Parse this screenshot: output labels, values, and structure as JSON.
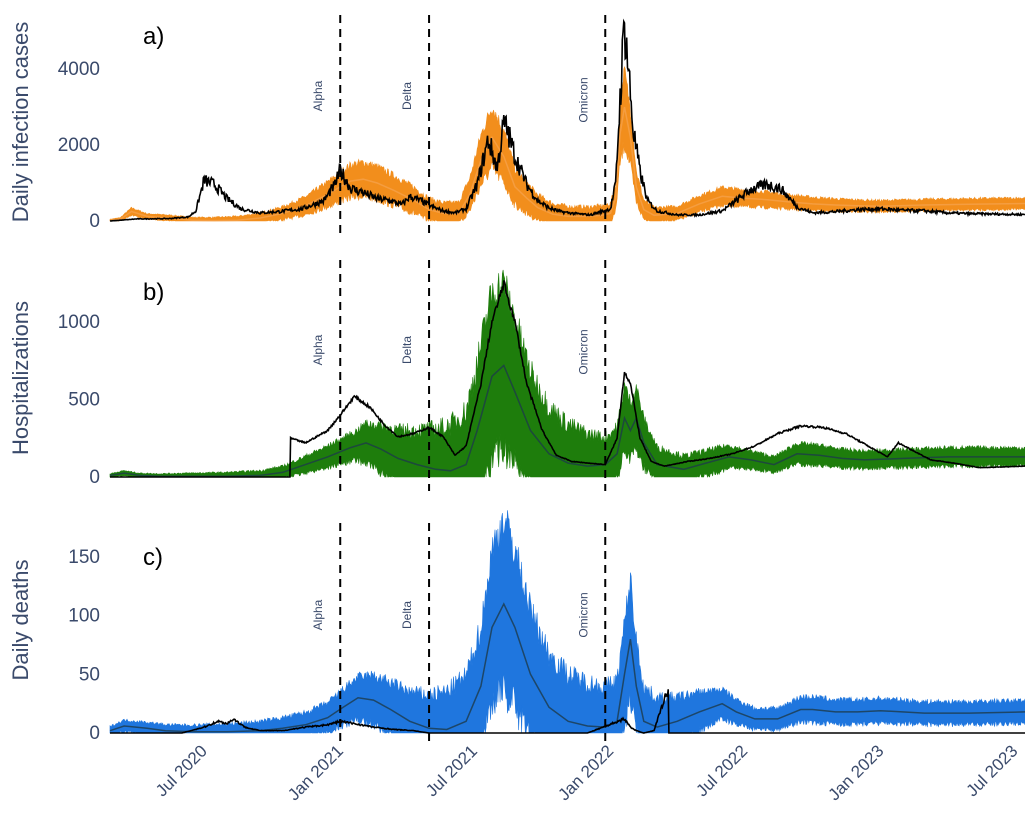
{
  "figure": {
    "x_ticks": [
      "Jul 2020",
      "Jan 2021",
      "Jul 2021",
      "Jan 2022",
      "Jul 2022",
      "Jan 2023",
      "Jul 2023"
    ],
    "variants": [
      {
        "label": "Alpha",
        "date": "2021-01-01"
      },
      {
        "label": "Delta",
        "date": "2021-05-01"
      },
      {
        "label": "Omicron",
        "date": "2021-12-25"
      }
    ],
    "colors": {
      "observed": "#000000",
      "dashed": "#000000",
      "axis_text": "#3a4a6b"
    }
  },
  "chart_data": [
    {
      "type": "line",
      "panel_label": "a)",
      "ylabel": "Daily infection cases",
      "yticks": [
        0,
        2000,
        4000
      ],
      "ylim": [
        0,
        5200
      ],
      "xlim": [
        "2020-02-25",
        "2023-07-15"
      ],
      "band_color": "#f28e1c",
      "series": [
        {
          "role": "observed",
          "x": [
            "2020-02-25",
            "2020-04-01",
            "2020-05-15",
            "2020-06-10",
            "2020-06-20",
            "2020-07-01",
            "2020-07-15",
            "2020-08-01",
            "2020-08-20",
            "2020-09-15",
            "2020-10-10",
            "2020-11-10",
            "2020-12-10",
            "2020-12-25",
            "2021-01-01",
            "2021-01-15",
            "2021-02-01",
            "2021-02-20",
            "2021-03-10",
            "2021-03-25",
            "2021-04-05",
            "2021-04-20",
            "2021-05-05",
            "2021-05-20",
            "2021-06-05",
            "2021-06-20",
            "2021-07-05",
            "2021-07-20",
            "2021-08-01",
            "2021-08-10",
            "2021-08-15",
            "2021-08-25",
            "2021-09-10",
            "2021-09-25",
            "2021-10-10",
            "2021-10-25",
            "2021-11-15",
            "2021-12-05",
            "2021-12-25",
            "2022-01-01",
            "2022-01-08",
            "2022-01-14",
            "2022-01-20",
            "2022-01-25",
            "2022-02-01",
            "2022-02-10",
            "2022-02-20",
            "2022-03-05",
            "2022-04-01",
            "2022-05-01",
            "2022-06-01",
            "2022-06-20",
            "2022-07-10",
            "2022-08-01",
            "2022-08-20",
            "2022-09-10",
            "2022-10-01",
            "2022-11-01",
            "2022-12-01",
            "2023-01-01",
            "2023-02-01",
            "2023-03-01",
            "2023-04-01",
            "2023-05-01",
            "2023-07-15"
          ],
          "y": [
            0,
            50,
            60,
            100,
            250,
            1000,
            900,
            550,
            300,
            200,
            230,
            300,
            500,
            900,
            1250,
            800,
            700,
            550,
            500,
            400,
            600,
            500,
            350,
            250,
            200,
            300,
            900,
            2000,
            1300,
            2400,
            2200,
            1600,
            900,
            500,
            320,
            230,
            180,
            150,
            260,
            300,
            900,
            3000,
            4900,
            3800,
            2200,
            1200,
            500,
            250,
            150,
            150,
            250,
            500,
            780,
            900,
            780,
            350,
            200,
            230,
            280,
            300,
            260,
            250,
            200,
            180,
            160
          ]
        },
        {
          "role": "model_mean",
          "x": [
            "2020-02-25",
            "2020-03-10",
            "2020-03-25",
            "2020-04-15",
            "2020-05-15",
            "2020-06-15",
            "2020-07-15",
            "2020-08-15",
            "2020-09-15",
            "2020-10-15",
            "2020-11-15",
            "2020-12-15",
            "2021-01-01",
            "2021-01-15",
            "2021-02-01",
            "2021-02-20",
            "2021-03-15",
            "2021-04-10",
            "2021-05-01",
            "2021-05-20",
            "2021-06-10",
            "2021-06-25",
            "2021-07-10",
            "2021-07-25",
            "2021-08-10",
            "2021-08-25",
            "2021-09-10",
            "2021-09-25",
            "2021-10-15",
            "2021-11-05",
            "2021-12-01",
            "2021-12-20",
            "2022-01-01",
            "2022-01-08",
            "2022-01-14",
            "2022-01-20",
            "2022-01-28",
            "2022-02-05",
            "2022-02-15",
            "2022-03-01",
            "2022-04-01",
            "2022-05-01",
            "2022-06-01",
            "2022-07-01",
            "2022-08-01",
            "2022-09-01",
            "2022-10-01",
            "2022-11-01",
            "2022-12-01",
            "2023-01-01",
            "2023-03-01",
            "2023-05-01",
            "2023-07-15"
          ],
          "y": [
            20,
            50,
            250,
            120,
            80,
            20,
            10,
            20,
            80,
            200,
            400,
            700,
            900,
            1050,
            1100,
            1000,
            800,
            550,
            300,
            200,
            200,
            700,
            1600,
            2200,
            1700,
            900,
            600,
            350,
            180,
            120,
            120,
            150,
            200,
            600,
            2300,
            3000,
            2200,
            900,
            300,
            150,
            200,
            450,
            650,
            600,
            560,
            500,
            450,
            420,
            400,
            390,
            420,
            440,
            460
          ]
        },
        {
          "role": "model_band_halfwidth",
          "x": [
            "2020-02-25",
            "2021-01-15",
            "2021-08-01",
            "2022-01-20",
            "2022-06-01",
            "2023-07-15"
          ],
          "y": [
            20,
            160,
            260,
            200,
            70,
            30
          ]
        }
      ]
    },
    {
      "type": "line",
      "panel_label": "b)",
      "ylabel": "Hospitalizations",
      "yticks": [
        0,
        500,
        1000
      ],
      "ylim": [
        0,
        1350
      ],
      "xlim": [
        "2020-02-25",
        "2023-07-15"
      ],
      "band_color": "#1e7d0c",
      "series": [
        {
          "role": "observed",
          "x": [
            "2020-02-25",
            "2020-10-25",
            "2020-10-26",
            "2020-11-15",
            "2020-12-15",
            "2021-01-01",
            "2021-01-20",
            "2021-02-10",
            "2021-03-01",
            "2021-03-20",
            "2021-04-10",
            "2021-05-01",
            "2021-05-20",
            "2021-06-05",
            "2021-06-20",
            "2021-07-10",
            "2021-07-25",
            "2021-08-10",
            "2021-08-25",
            "2021-09-10",
            "2021-10-01",
            "2021-10-20",
            "2021-11-10",
            "2021-12-01",
            "2021-12-25",
            "2022-01-10",
            "2022-01-20",
            "2022-01-28",
            "2022-02-10",
            "2022-02-25",
            "2022-03-15",
            "2022-04-15",
            "2022-05-15",
            "2022-06-15",
            "2022-07-15",
            "2022-08-15",
            "2022-09-15",
            "2022-10-15",
            "2022-11-15",
            "2022-12-15",
            "2023-01-10",
            "2023-01-25",
            "2023-02-10",
            "2023-03-10",
            "2023-04-10",
            "2023-05-15",
            "2023-07-15"
          ],
          "y": [
            0,
            0,
            250,
            220,
            300,
            400,
            520,
            450,
            340,
            260,
            280,
            320,
            260,
            140,
            200,
            600,
            1000,
            1250,
            1000,
            600,
            300,
            140,
            100,
            90,
            80,
            250,
            680,
            600,
            250,
            100,
            70,
            100,
            120,
            150,
            200,
            280,
            330,
            320,
            280,
            200,
            130,
            220,
            180,
            110,
            90,
            60,
            70
          ]
        },
        {
          "role": "model_mean",
          "x": [
            "2020-02-25",
            "2020-03-15",
            "2020-04-05",
            "2020-05-01",
            "2020-06-15",
            "2020-08-01",
            "2020-09-15",
            "2020-10-15",
            "2020-11-15",
            "2020-12-15",
            "2021-01-15",
            "2021-02-05",
            "2021-02-25",
            "2021-03-20",
            "2021-04-15",
            "2021-05-10",
            "2021-05-30",
            "2021-06-20",
            "2021-07-05",
            "2021-07-25",
            "2021-08-10",
            "2021-08-25",
            "2021-09-15",
            "2021-10-10",
            "2021-11-05",
            "2021-12-01",
            "2021-12-25",
            "2022-01-10",
            "2022-01-20",
            "2022-01-28",
            "2022-02-05",
            "2022-02-15",
            "2022-03-05",
            "2022-04-10",
            "2022-05-10",
            "2022-06-10",
            "2022-07-10",
            "2022-08-10",
            "2022-09-10",
            "2022-10-10",
            "2022-11-10",
            "2022-12-10",
            "2023-02-01",
            "2023-04-01",
            "2023-07-15"
          ],
          "y": [
            10,
            25,
            10,
            5,
            5,
            5,
            10,
            30,
            80,
            130,
            190,
            220,
            180,
            120,
            80,
            50,
            40,
            80,
            300,
            650,
            720,
            550,
            300,
            150,
            90,
            70,
            80,
            150,
            380,
            300,
            380,
            220,
            80,
            50,
            90,
            130,
            110,
            80,
            150,
            140,
            120,
            110,
            120,
            130,
            130
          ]
        },
        {
          "role": "model_band_halfwidth",
          "x": [
            "2020-02-25",
            "2021-01-20",
            "2021-07-20",
            "2022-01-25",
            "2022-07-01",
            "2023-07-15"
          ],
          "y": [
            8,
            40,
            380,
            110,
            30,
            25
          ]
        }
      ]
    },
    {
      "type": "line",
      "panel_label": "c)",
      "ylabel": "Daily deaths",
      "yticks": [
        0,
        50,
        100,
        150
      ],
      "ylim": [
        0,
        180
      ],
      "xlim": [
        "2020-02-25",
        "2023-07-15"
      ],
      "band_color": "#1f76de",
      "series": [
        {
          "role": "observed",
          "x": [
            "2020-02-25",
            "2020-06-01",
            "2020-07-01",
            "2020-07-20",
            "2020-08-01",
            "2020-08-10",
            "2020-08-25",
            "2020-09-15",
            "2020-10-15",
            "2020-11-15",
            "2020-12-15",
            "2021-01-01",
            "2021-01-20",
            "2021-02-15",
            "2021-03-15",
            "2021-04-10",
            "2021-05-01",
            "2021-06-01",
            "2021-07-01",
            "2021-09-01",
            "2021-12-01",
            "2022-01-20",
            "2022-01-28",
            "2022-02-05",
            "2022-02-15",
            "2022-03-01",
            "2022-03-15",
            "2022-03-20",
            "2022-03-21",
            "2023-07-15"
          ],
          "y": [
            0,
            0,
            5,
            10,
            8,
            12,
            5,
            2,
            2,
            5,
            7,
            10,
            8,
            5,
            3,
            2,
            0,
            0,
            0,
            0,
            0,
            12,
            5,
            2,
            0,
            2,
            30,
            35,
            0,
            0
          ]
        },
        {
          "role": "model_mean",
          "x": [
            "2020-02-25",
            "2020-03-15",
            "2020-04-15",
            "2020-05-10",
            "2020-06-15",
            "2020-08-01",
            "2020-09-15",
            "2020-10-15",
            "2020-11-15",
            "2020-12-15",
            "2021-01-05",
            "2021-01-25",
            "2021-02-15",
            "2021-03-10",
            "2021-04-05",
            "2021-05-01",
            "2021-05-25",
            "2021-06-20",
            "2021-07-10",
            "2021-07-25",
            "2021-08-10",
            "2021-08-25",
            "2021-09-15",
            "2021-10-10",
            "2021-11-05",
            "2021-12-01",
            "2021-12-25",
            "2022-01-10",
            "2022-01-20",
            "2022-01-28",
            "2022-02-05",
            "2022-02-15",
            "2022-03-05",
            "2022-04-01",
            "2022-05-01",
            "2022-06-01",
            "2022-06-20",
            "2022-07-15",
            "2022-08-15",
            "2022-09-15",
            "2022-10-01",
            "2022-11-01",
            "2022-12-01",
            "2023-01-01",
            "2023-03-01",
            "2023-05-01",
            "2023-07-15"
          ],
          "y": [
            2,
            6,
            4,
            2,
            1,
            1,
            2,
            4,
            7,
            13,
            22,
            30,
            28,
            20,
            10,
            4,
            3,
            10,
            40,
            90,
            110,
            90,
            50,
            22,
            10,
            6,
            5,
            10,
            50,
            80,
            40,
            10,
            5,
            10,
            18,
            25,
            18,
            12,
            12,
            20,
            20,
            18,
            18,
            19,
            17,
            17,
            18
          ]
        },
        {
          "role": "model_band_halfwidth",
          "x": [
            "2020-02-25",
            "2021-01-25",
            "2021-08-10",
            "2022-01-28",
            "2022-06-01",
            "2023-07-15"
          ],
          "y": [
            3,
            10,
            45,
            30,
            6,
            5
          ]
        }
      ]
    }
  ]
}
